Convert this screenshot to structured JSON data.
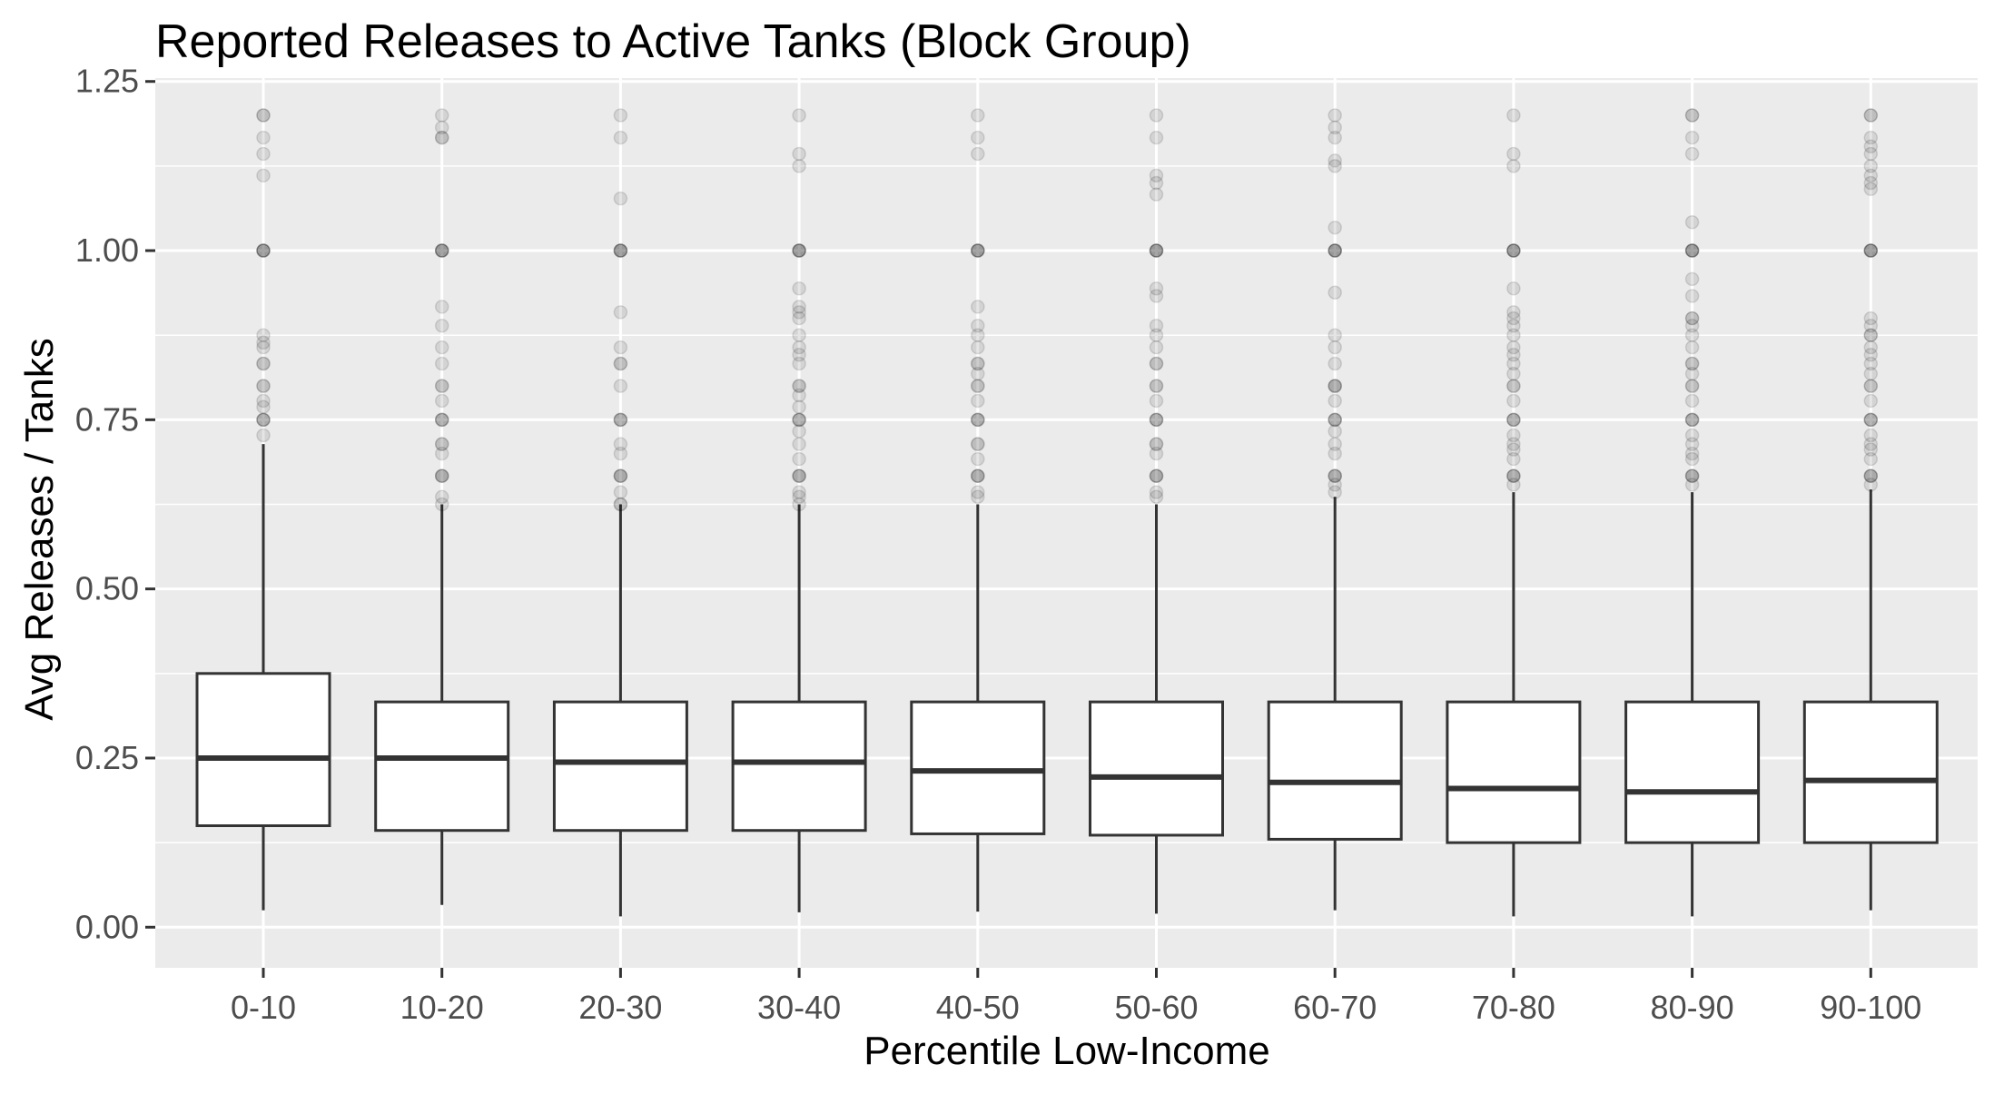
{
  "chart_data": {
    "type": "boxplot",
    "title": "Reported Releases to Active Tanks (Block Group)",
    "xlabel": "Percentile Low-Income",
    "ylabel": "Avg Releases / Tanks",
    "ylim": [
      -0.06,
      1.255
    ],
    "yticks": [
      "0.00",
      "0.25",
      "0.50",
      "0.75",
      "1.00",
      "1.25"
    ],
    "ytick_values": [
      0,
      0.25,
      0.5,
      0.75,
      1.0,
      1.25
    ],
    "grid": true,
    "panel_background": "#ebebeb",
    "grid_color": "#ffffff",
    "box_color": "#333333",
    "outlier_color": "#000000",
    "categories": [
      "0-10",
      "10-20",
      "20-30",
      "30-40",
      "40-50",
      "50-60",
      "60-70",
      "70-80",
      "80-90",
      "90-100"
    ],
    "boxes": [
      {
        "category": "0-10",
        "min": 0.025,
        "q1": 0.15,
        "median": 0.25,
        "q3": 0.375,
        "max": 0.714,
        "outliers": [
          0.727,
          0.75,
          0.75,
          0.75,
          0.769,
          0.778,
          0.8,
          0.8,
          0.833,
          0.833,
          0.857,
          0.864,
          0.875,
          1.0,
          1.0,
          1.0,
          1.0,
          1.111,
          1.143,
          1.167,
          1.2,
          1.2
        ]
      },
      {
        "category": "10-20",
        "min": 0.033,
        "q1": 0.143,
        "median": 0.25,
        "q3": 0.333,
        "max": 0.625,
        "outliers": [
          0.625,
          0.636,
          0.667,
          0.667,
          0.667,
          0.7,
          0.714,
          0.714,
          0.75,
          0.75,
          0.75,
          0.778,
          0.8,
          0.8,
          0.833,
          0.857,
          0.889,
          0.917,
          1.0,
          1.0,
          1.0,
          1.0,
          1.167,
          1.167,
          1.182,
          1.2
        ]
      },
      {
        "category": "20-30",
        "min": 0.016,
        "q1": 0.143,
        "median": 0.244,
        "q3": 0.333,
        "max": 0.625,
        "outliers": [
          0.625,
          0.625,
          0.643,
          0.667,
          0.667,
          0.667,
          0.7,
          0.714,
          0.75,
          0.75,
          0.75,
          0.8,
          0.833,
          0.833,
          0.857,
          0.909,
          1.0,
          1.0,
          1.0,
          1.0,
          1.077,
          1.167,
          1.2
        ]
      },
      {
        "category": "30-40",
        "min": 0.022,
        "q1": 0.143,
        "median": 0.244,
        "q3": 0.333,
        "max": 0.625,
        "outliers": [
          0.625,
          0.636,
          0.643,
          0.667,
          0.667,
          0.667,
          0.692,
          0.714,
          0.733,
          0.75,
          0.75,
          0.75,
          0.769,
          0.786,
          0.8,
          0.8,
          0.833,
          0.846,
          0.857,
          0.875,
          0.9,
          0.909,
          0.917,
          0.944,
          1.0,
          1.0,
          1.0,
          1.0,
          1.125,
          1.143,
          1.2
        ]
      },
      {
        "category": "40-50",
        "min": 0.023,
        "q1": 0.138,
        "median": 0.231,
        "q3": 0.333,
        "max": 0.625,
        "outliers": [
          0.636,
          0.643,
          0.667,
          0.667,
          0.667,
          0.692,
          0.714,
          0.714,
          0.75,
          0.75,
          0.75,
          0.778,
          0.8,
          0.8,
          0.818,
          0.833,
          0.833,
          0.857,
          0.875,
          0.889,
          0.917,
          1.0,
          1.0,
          1.0,
          1.0,
          1.143,
          1.167,
          1.2
        ]
      },
      {
        "category": "50-60",
        "min": 0.02,
        "q1": 0.136,
        "median": 0.222,
        "q3": 0.333,
        "max": 0.625,
        "outliers": [
          0.636,
          0.643,
          0.667,
          0.667,
          0.667,
          0.7,
          0.714,
          0.714,
          0.75,
          0.75,
          0.75,
          0.778,
          0.8,
          0.8,
          0.833,
          0.833,
          0.857,
          0.875,
          0.889,
          0.933,
          0.944,
          1.0,
          1.0,
          1.0,
          1.0,
          1.083,
          1.1,
          1.111,
          1.167,
          1.2
        ]
      },
      {
        "category": "60-70",
        "min": 0.025,
        "q1": 0.13,
        "median": 0.214,
        "q3": 0.333,
        "max": 0.636,
        "outliers": [
          0.643,
          0.654,
          0.667,
          0.667,
          0.667,
          0.7,
          0.714,
          0.733,
          0.75,
          0.75,
          0.75,
          0.778,
          0.8,
          0.8,
          0.8,
          0.833,
          0.857,
          0.875,
          0.938,
          1.0,
          1.0,
          1.0,
          1.0,
          1.034,
          1.125,
          1.133,
          1.167,
          1.182,
          1.2
        ]
      },
      {
        "category": "70-80",
        "min": 0.016,
        "q1": 0.125,
        "median": 0.205,
        "q3": 0.333,
        "max": 0.643,
        "outliers": [
          0.654,
          0.667,
          0.667,
          0.667,
          0.692,
          0.706,
          0.714,
          0.727,
          0.75,
          0.75,
          0.75,
          0.778,
          0.8,
          0.8,
          0.818,
          0.833,
          0.846,
          0.857,
          0.875,
          0.889,
          0.9,
          0.909,
          0.944,
          1.0,
          1.0,
          1.0,
          1.0,
          1.125,
          1.143,
          1.2
        ]
      },
      {
        "category": "80-90",
        "min": 0.016,
        "q1": 0.125,
        "median": 0.2,
        "q3": 0.333,
        "max": 0.643,
        "outliers": [
          0.654,
          0.667,
          0.667,
          0.667,
          0.692,
          0.7,
          0.714,
          0.727,
          0.75,
          0.75,
          0.75,
          0.778,
          0.8,
          0.8,
          0.818,
          0.833,
          0.833,
          0.857,
          0.875,
          0.889,
          0.9,
          0.9,
          0.933,
          0.958,
          1.0,
          1.0,
          1.0,
          1.0,
          1.042,
          1.143,
          1.167,
          1.2,
          1.2
        ]
      },
      {
        "category": "90-100",
        "min": 0.025,
        "q1": 0.125,
        "median": 0.217,
        "q3": 0.333,
        "max": 0.647,
        "outliers": [
          0.654,
          0.667,
          0.667,
          0.667,
          0.692,
          0.706,
          0.714,
          0.727,
          0.75,
          0.75,
          0.75,
          0.778,
          0.8,
          0.8,
          0.818,
          0.833,
          0.846,
          0.857,
          0.875,
          0.875,
          0.889,
          0.9,
          1.0,
          1.0,
          1.0,
          1.0,
          1.091,
          1.1,
          1.111,
          1.125,
          1.143,
          1.154,
          1.167,
          1.2,
          1.2
        ]
      }
    ]
  }
}
